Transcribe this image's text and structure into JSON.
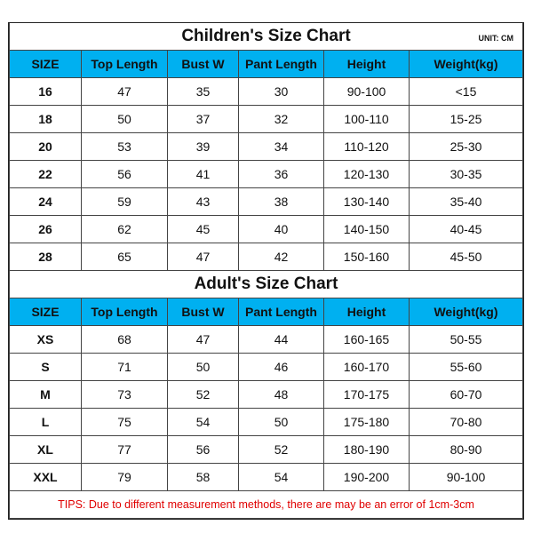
{
  "children": {
    "title": "Children's Size Chart",
    "unit": "UNIT: CM",
    "headers": [
      "SIZE",
      "Top Length",
      "Bust W",
      "Pant Length",
      "Height",
      "Weight(kg)"
    ],
    "rows": [
      [
        "16",
        "47",
        "35",
        "30",
        "90-100",
        "<15"
      ],
      [
        "18",
        "50",
        "37",
        "32",
        "100-110",
        "15-25"
      ],
      [
        "20",
        "53",
        "39",
        "34",
        "110-120",
        "25-30"
      ],
      [
        "22",
        "56",
        "41",
        "36",
        "120-130",
        "30-35"
      ],
      [
        "24",
        "59",
        "43",
        "38",
        "130-140",
        "35-40"
      ],
      [
        "26",
        "62",
        "45",
        "40",
        "140-150",
        "40-45"
      ],
      [
        "28",
        "65",
        "47",
        "42",
        "150-160",
        "45-50"
      ]
    ]
  },
  "adult": {
    "title": "Adult's Size Chart",
    "headers": [
      "SIZE",
      "Top Length",
      "Bust W",
      "Pant Length",
      "Height",
      "Weight(kg)"
    ],
    "rows": [
      [
        "XS",
        "68",
        "47",
        "44",
        "160-165",
        "50-55"
      ],
      [
        "S",
        "71",
        "50",
        "46",
        "160-170",
        "55-60"
      ],
      [
        "M",
        "73",
        "52",
        "48",
        "170-175",
        "60-70"
      ],
      [
        "L",
        "75",
        "54",
        "50",
        "175-180",
        "70-80"
      ],
      [
        "XL",
        "77",
        "56",
        "52",
        "180-190",
        "80-90"
      ],
      [
        "XXL",
        "79",
        "58",
        "54",
        "190-200",
        "90-100"
      ]
    ]
  },
  "tips": "TIPS: Due to different measurement methods, there are may be an error of 1cm-3cm",
  "colors": {
    "header_bg": "#00b0f0",
    "tips_text": "#e00000"
  }
}
